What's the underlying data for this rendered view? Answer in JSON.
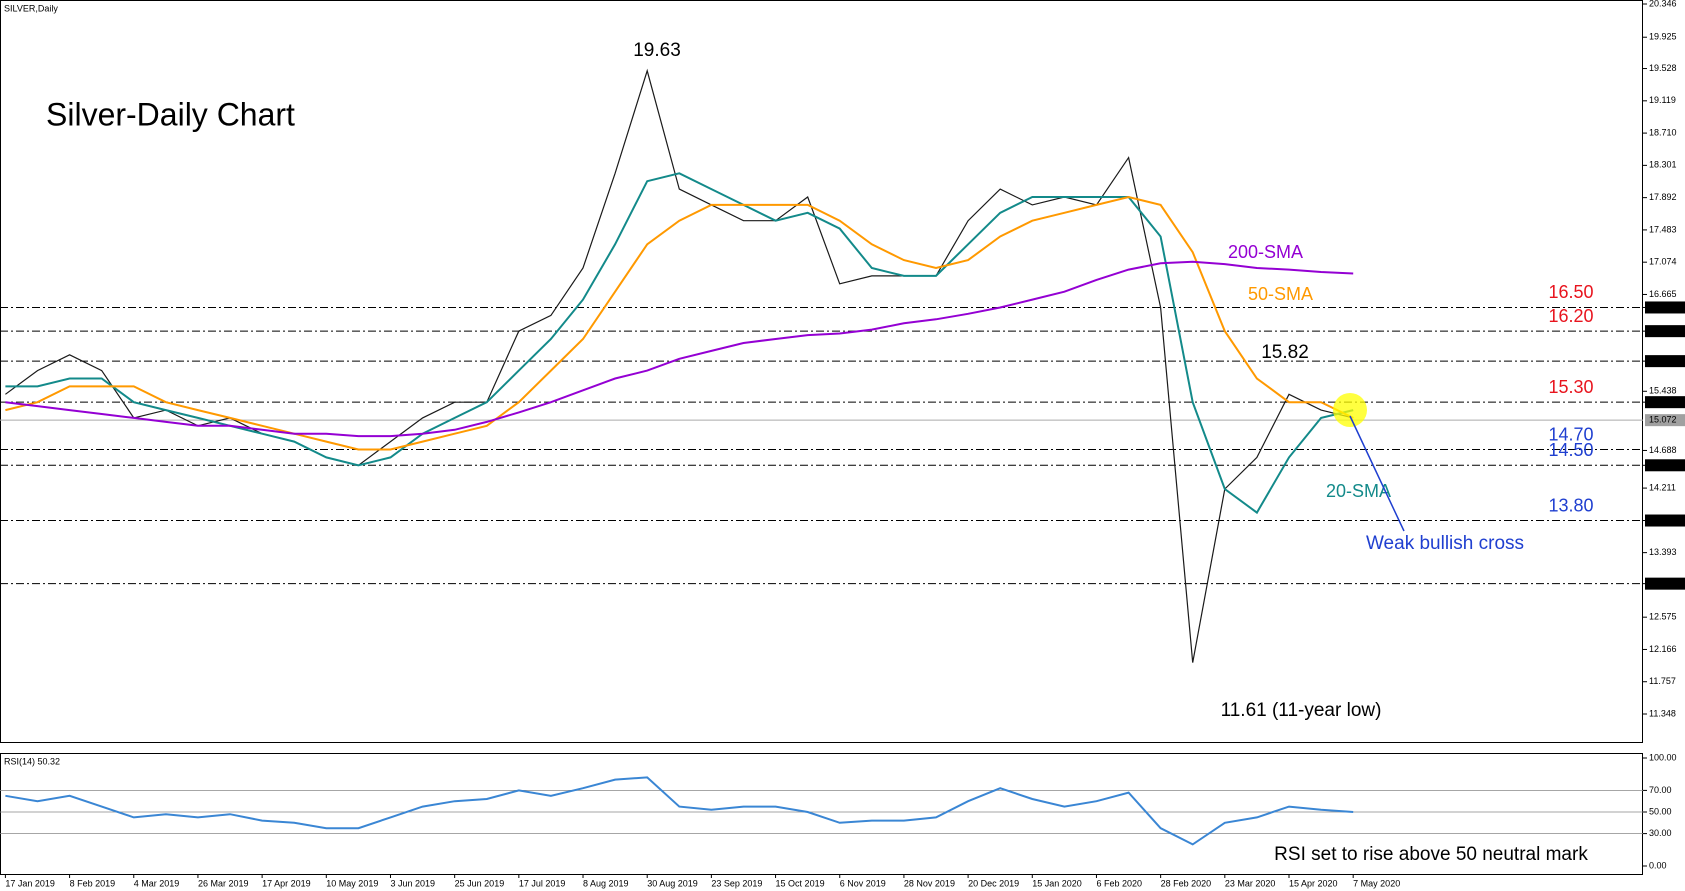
{
  "chart_data": [
    {
      "type": "line",
      "title": "Silver-Daily Chart",
      "subtitle": "SILVER,Daily",
      "categories": [
        "17 Jan 2019",
        null,
        "8 Feb 2019",
        null,
        "4 Mar 2019",
        null,
        "26 Mar 2019",
        null,
        "17 Apr 2019",
        null,
        "10 May 2019",
        null,
        "3 Jun 2019",
        null,
        "25 Jun 2019",
        null,
        "17 Jul 2019",
        null,
        "8 Aug 2019",
        null,
        "30 Aug 2019",
        null,
        "23 Sep 2019",
        null,
        "15 Oct 2019",
        null,
        "6 Nov 2019",
        null,
        "28 Nov 2019",
        null,
        "20 Dec 2019",
        null,
        "15 Jan 2020",
        null,
        "6 Feb 2020",
        null,
        "28 Feb 2020",
        null,
        "23 Mar 2020",
        null,
        "15 Apr 2020",
        null,
        "7 May 2020",
        null,
        null,
        null,
        null,
        null,
        null,
        null,
        null,
        null
      ],
      "series": [
        {
          "color": "#1a1a1a",
          "values": [
            15.4,
            15.7,
            15.9,
            15.7,
            15.1,
            15.2,
            15.0,
            15.1,
            14.9,
            14.8,
            14.6,
            14.5,
            14.8,
            15.1,
            15.3,
            15.3,
            16.2,
            16.4,
            17.0,
            18.2,
            19.5,
            18.0,
            17.8,
            17.6,
            17.6,
            17.9,
            16.8,
            16.9,
            16.9,
            16.9,
            17.6,
            18.0,
            17.8,
            17.9,
            17.8,
            18.4,
            16.5,
            12.0,
            14.2,
            14.6,
            15.4,
            15.2,
            15.1,
            null,
            null,
            null,
            null,
            null,
            null,
            null,
            null,
            null
          ]
        },
        {
          "name": "20-SMA",
          "color": "#138a8a",
          "values": [
            15.5,
            15.5,
            15.6,
            15.6,
            15.3,
            15.2,
            15.1,
            15.0,
            14.9,
            14.8,
            14.6,
            14.5,
            14.6,
            14.9,
            15.1,
            15.3,
            15.7,
            16.1,
            16.6,
            17.3,
            18.1,
            18.2,
            18.0,
            17.8,
            17.6,
            17.7,
            17.5,
            17.0,
            16.9,
            16.9,
            17.3,
            17.7,
            17.9,
            17.9,
            17.9,
            17.9,
            17.4,
            15.3,
            14.2,
            13.9,
            14.6,
            15.1,
            15.2,
            null,
            null,
            null,
            null,
            null,
            null,
            null,
            null,
            null
          ]
        },
        {
          "name": "50-SMA",
          "color": "#ff9900",
          "values": [
            15.2,
            15.3,
            15.5,
            15.5,
            15.5,
            15.3,
            15.2,
            15.1,
            15.0,
            14.9,
            14.8,
            14.7,
            14.7,
            14.8,
            14.9,
            15.0,
            15.3,
            15.7,
            16.1,
            16.7,
            17.3,
            17.6,
            17.8,
            17.8,
            17.8,
            17.8,
            17.6,
            17.3,
            17.1,
            17.0,
            17.1,
            17.4,
            17.6,
            17.7,
            17.8,
            17.9,
            17.8,
            17.2,
            16.2,
            15.6,
            15.3,
            15.3,
            15.1,
            null,
            null,
            null,
            null,
            null,
            null,
            null,
            null,
            null
          ]
        },
        {
          "name": "200-SMA",
          "color": "#9400d3",
          "values": [
            15.3,
            15.25,
            15.2,
            15.15,
            15.1,
            15.05,
            15.0,
            15.0,
            14.95,
            14.9,
            14.9,
            14.87,
            14.87,
            14.9,
            14.95,
            15.05,
            15.17,
            15.3,
            15.45,
            15.6,
            15.7,
            15.85,
            15.95,
            16.05,
            16.1,
            16.15,
            16.17,
            16.22,
            16.3,
            16.35,
            16.42,
            16.5,
            16.6,
            16.7,
            16.85,
            16.98,
            17.06,
            17.08,
            17.05,
            17.0,
            16.98,
            16.95,
            16.93,
            null,
            null,
            null,
            null,
            null,
            null,
            null,
            null,
            null
          ]
        }
      ],
      "ylim": [
        11.348,
        20.346
      ],
      "yticks": [
        20.346,
        19.925,
        19.528,
        19.119,
        {
          "value": 18.71,
          "label": "18.710"
        },
        18.301,
        17.892,
        17.483,
        17.074,
        16.665,
        {
          "value": 16.5,
          "label": "16.500"
        },
        {
          "value": 16.2,
          "label": "16.200"
        },
        {
          "value": 15.82,
          "label": "15.820"
        },
        15.438,
        {
          "value": 15.3,
          "label": "15.300"
        },
        14.688,
        {
          "value": 14.5,
          "label": "14.500"
        },
        14.211,
        {
          "value": 13.8,
          "label": "13.800"
        },
        13.393,
        {
          "value": 13,
          "label": "13.000"
        },
        12.575,
        12.166,
        11.757,
        11.348
      ],
      "last_price": {
        "value": 15.072,
        "label": "15.072"
      },
      "level_lines": [
        16.5,
        16.2,
        15.82,
        15.3,
        14.7,
        14.5,
        13.8,
        13.0
      ],
      "level_labels": [
        {
          "value": 16.5,
          "label": "16.50",
          "color": "#e8141e"
        },
        {
          "value": 16.2,
          "label": "16.20",
          "color": "#e8141e"
        },
        {
          "value": 15.3,
          "label": "15.30",
          "color": "#e8141e"
        },
        {
          "value": 14.7,
          "label": "14.70",
          "color": "#1f3fd0"
        },
        {
          "value": 14.5,
          "label": "14.50",
          "color": "#1f3fd0"
        },
        {
          "value": 13.8,
          "label": "13.80",
          "color": "#1f3fd0"
        }
      ],
      "annotations": [
        {
          "text": "19.63",
          "color": "#000000"
        },
        {
          "text": "15.82",
          "color": "#000000"
        },
        {
          "text": "11.61 (11-year low)",
          "color": "#000000"
        },
        {
          "text": "Weak bullish cross",
          "color": "#1f3fd0"
        }
      ]
    },
    {
      "type": "line",
      "title": "RSI(14) 50.32",
      "series": [
        {
          "color": "#3a86d4",
          "values": [
            65,
            60,
            65,
            55,
            45,
            48,
            45,
            48,
            42,
            40,
            35,
            35,
            45,
            55,
            60,
            62,
            70,
            65,
            72,
            80,
            82,
            55,
            52,
            55,
            55,
            50,
            40,
            42,
            42,
            45,
            60,
            72,
            62,
            55,
            60,
            68,
            35,
            20,
            40,
            45,
            55,
            52,
            50,
            null,
            null,
            null,
            null,
            null,
            null,
            null,
            null,
            null
          ]
        }
      ],
      "ylim": [
        0,
        100
      ],
      "yticks": [
        {
          "value": 100,
          "label": "100.00"
        },
        {
          "value": 70,
          "label": "70.00"
        },
        {
          "value": 50,
          "label": "50.00"
        },
        {
          "value": 30,
          "label": "30.00"
        },
        {
          "value": 0,
          "label": "0.00"
        }
      ],
      "annotations": [
        {
          "text": "RSI set to rise above 50 neutral mark",
          "color": "#000000"
        }
      ]
    }
  ]
}
